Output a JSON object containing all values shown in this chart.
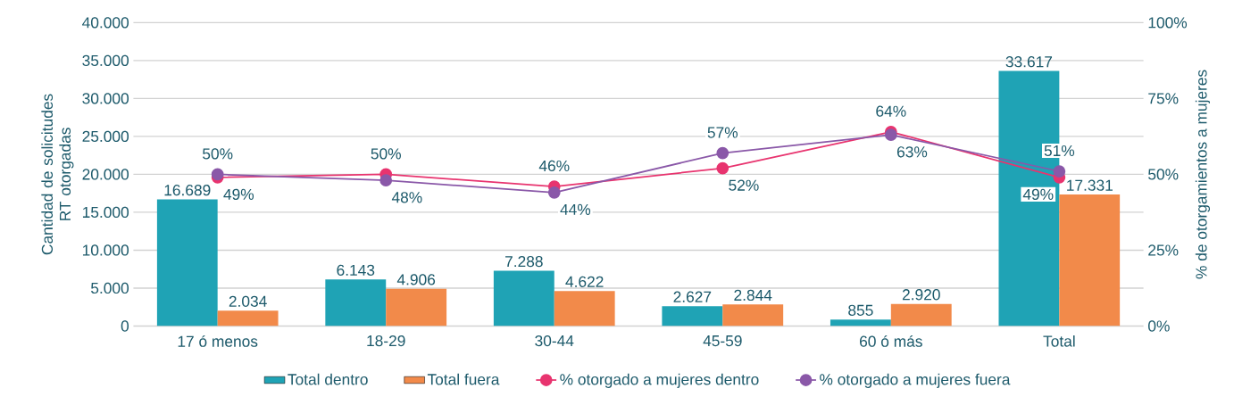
{
  "chart_data": {
    "type": "bar",
    "categories": [
      "17 ó menos",
      "18-29",
      "30-44",
      "45-59",
      "60 ó más",
      "Total"
    ],
    "ylabel": "Cantidad de solicitudes RT otorgadas",
    "y2label": "% de otorgamientos a mujeres",
    "ylim": [
      0,
      40000
    ],
    "yticks": [
      {
        "value": 0,
        "label": "0"
      },
      {
        "value": 5000,
        "label": "5.000"
      },
      {
        "value": 10000,
        "label": "10.000"
      },
      {
        "value": 15000,
        "label": "15.000"
      },
      {
        "value": 20000,
        "label": "20.000"
      },
      {
        "value": 25000,
        "label": "25.000"
      },
      {
        "value": 30000,
        "label": "30.000"
      },
      {
        "value": 35000,
        "label": "35.000"
      },
      {
        "value": 40000,
        "label": "40.000"
      }
    ],
    "y2lim": [
      0,
      100
    ],
    "y2ticks": [
      {
        "value": 0,
        "label": "0%"
      },
      {
        "value": 25,
        "label": "25%"
      },
      {
        "value": 50,
        "label": "50%"
      },
      {
        "value": 75,
        "label": "75%"
      },
      {
        "value": 100,
        "label": "100%"
      }
    ],
    "grid": "y",
    "legend": "bottom",
    "marker": "circle",
    "series": [
      {
        "name": "Total dentro",
        "color": "#1fa3b5",
        "values": [
          16689,
          6143,
          7288,
          2627,
          855,
          33617
        ],
        "value_labels": [
          "16.689",
          "6.143",
          "7.288",
          "2.627",
          "855",
          "33.617"
        ]
      },
      {
        "name": "Total fuera",
        "color": "#f28a4a",
        "values": [
          2034,
          4906,
          4622,
          2844,
          2920,
          17331
        ],
        "value_labels": [
          "2.034",
          "4.906",
          "4.622",
          "2.844",
          "2.920",
          "17.331"
        ]
      },
      {
        "name": "% otorgado a mujeres dentro",
        "type": "line",
        "axis": "y2",
        "color": "#e8346f",
        "values": [
          49,
          50,
          46,
          52,
          64,
          49
        ],
        "value_labels": [
          "49%",
          "50%",
          "46%",
          "52%",
          "64%",
          "49%"
        ]
      },
      {
        "name": "% otorgado a mujeres fuera",
        "type": "line",
        "axis": "y2",
        "color": "#8a58a8",
        "values": [
          50,
          48,
          44,
          57,
          63,
          51
        ],
        "value_labels": [
          "50%",
          "48%",
          "44%",
          "57%",
          "63%",
          "51%"
        ]
      }
    ]
  }
}
